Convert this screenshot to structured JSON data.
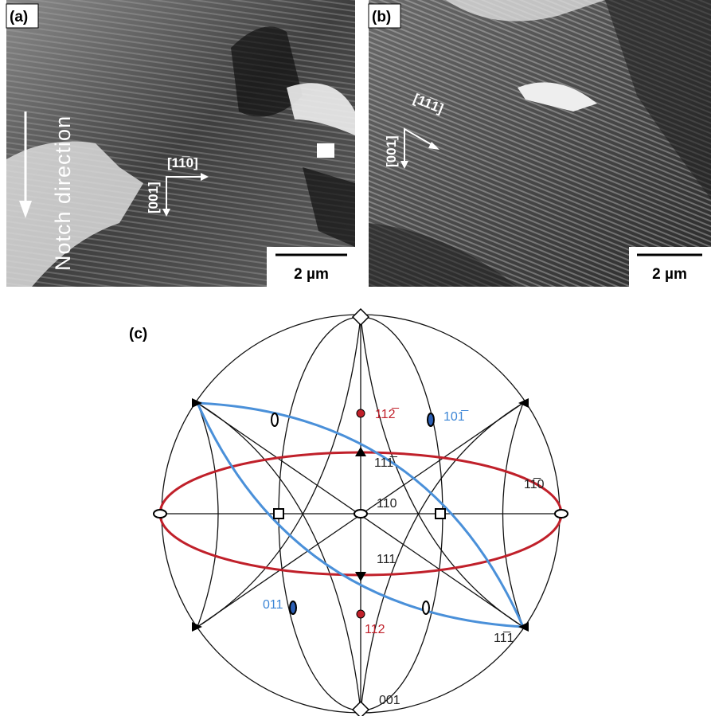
{
  "panels": [
    {
      "label": "(a)",
      "notch": "Notch direction",
      "directions": [
        "[11̅0]",
        "[001]"
      ],
      "scale": "2 µm"
    },
    {
      "label": "(b)",
      "directions": [
        "[11̅1]",
        "[001]"
      ],
      "scale": "2 µm"
    },
    {
      "label": "(c)",
      "poles": [
        "112̅",
        "101̅",
        "111̅",
        "11̅0",
        "110",
        "111",
        "011",
        "112",
        "11̅1",
        "001"
      ]
    }
  ]
}
